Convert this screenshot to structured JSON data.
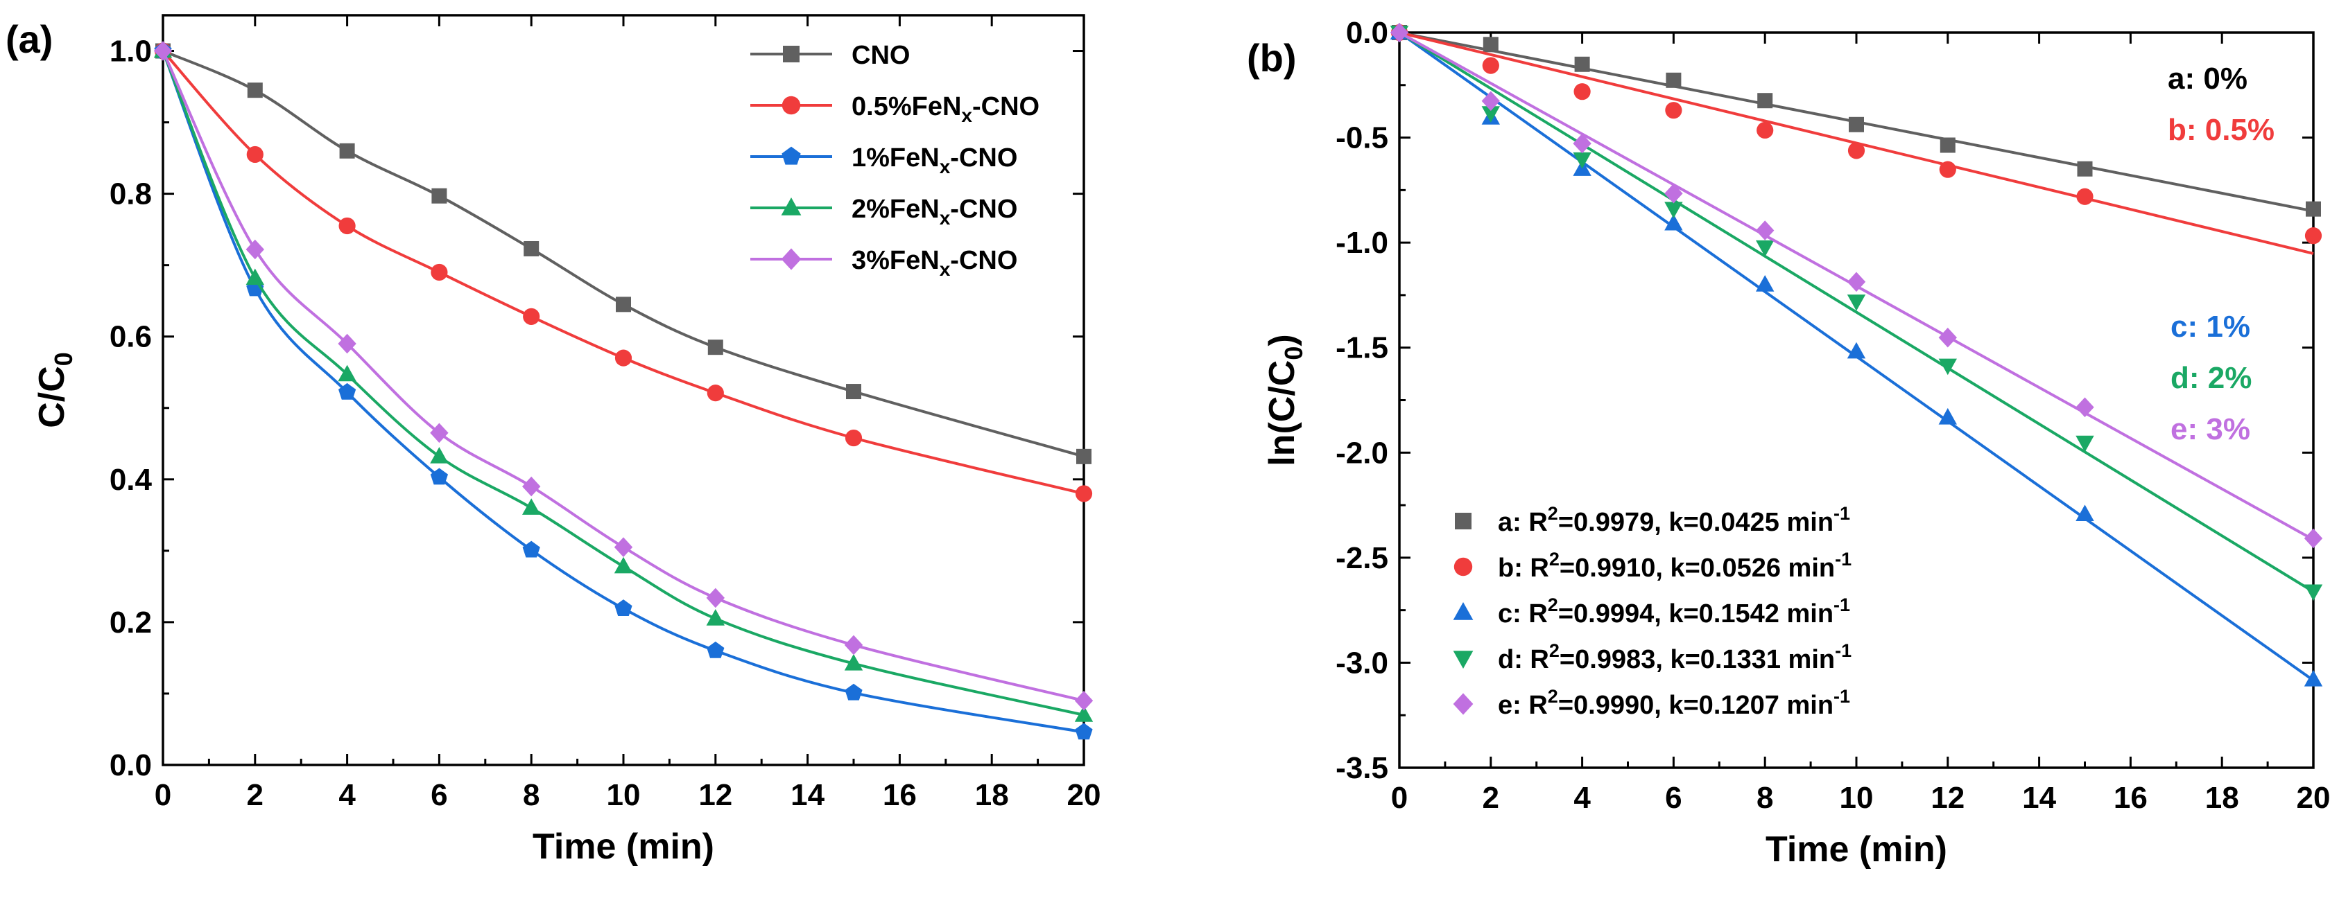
{
  "chart_data": [
    {
      "panel": "(a)",
      "type": "line",
      "xlabel": "Time (min)",
      "ylabel": "C/C0",
      "ylabel_main": "C/C",
      "ylabel_sub": "0",
      "xlim": [
        0,
        20
      ],
      "ylim": [
        0,
        1.05
      ],
      "xticks": [
        0,
        2,
        4,
        6,
        8,
        10,
        12,
        14,
        16,
        18,
        20
      ],
      "yticks": [
        0.0,
        0.2,
        0.4,
        0.6,
        0.8,
        1.0
      ],
      "xtick_labels": [
        "0",
        "2",
        "4",
        "6",
        "8",
        "10",
        "12",
        "14",
        "16",
        "18",
        "20"
      ],
      "ytick_labels": [
        "0.0",
        "0.2",
        "0.4",
        "0.6",
        "0.8",
        "1.0"
      ],
      "legend_position": "top-right",
      "x": [
        0,
        2,
        4,
        6,
        8,
        10,
        12,
        15,
        20
      ],
      "series": [
        {
          "name": "CNO",
          "legend_main": "CNO",
          "legend_sub": "",
          "legend_tail": "",
          "color": "#606060",
          "marker": "square",
          "values": [
            1.0,
            0.945,
            0.86,
            0.797,
            0.723,
            0.645,
            0.585,
            0.523,
            0.432
          ]
        },
        {
          "name": "0.5%FeNx-CNO",
          "legend_main": "0.5%FeN",
          "legend_sub": "x",
          "legend_tail": "-CNO",
          "color": "#f03c3c",
          "marker": "circle",
          "values": [
            1.0,
            0.855,
            0.755,
            0.69,
            0.628,
            0.57,
            0.521,
            0.458,
            0.38
          ]
        },
        {
          "name": "1%FeNx-CNO",
          "legend_main": "1%FeN",
          "legend_sub": "x",
          "legend_tail": "-CNO",
          "color": "#1a6fd8",
          "marker": "pentagon",
          "values": [
            1.0,
            0.667,
            0.522,
            0.403,
            0.301,
            0.219,
            0.16,
            0.101,
            0.046
          ]
        },
        {
          "name": "2%FeNx-CNO",
          "legend_main": "2%FeN",
          "legend_sub": "x",
          "legend_tail": "-CNO",
          "color": "#1aa864",
          "marker": "triangle-up",
          "values": [
            1.0,
            0.682,
            0.547,
            0.432,
            0.36,
            0.278,
            0.205,
            0.142,
            0.07
          ]
        },
        {
          "name": "3%FeNx-CNO",
          "legend_main": "3%FeN",
          "legend_sub": "x",
          "legend_tail": "-CNO",
          "color": "#c070e0",
          "marker": "diamond",
          "values": [
            1.0,
            0.722,
            0.59,
            0.465,
            0.39,
            0.305,
            0.234,
            0.168,
            0.09
          ]
        }
      ]
    },
    {
      "panel": "(b)",
      "type": "scatter",
      "xlabel": "Time (min)",
      "ylabel": "ln(C/C0)",
      "ylabel_main": "ln(C/C",
      "ylabel_sub": "0",
      "ylabel_tail": ")",
      "xlim": [
        0,
        20
      ],
      "ylim": [
        -3.5,
        0
      ],
      "xticks": [
        0,
        2,
        4,
        6,
        8,
        10,
        12,
        14,
        16,
        18,
        20
      ],
      "yticks": [
        0.0,
        -0.5,
        -1.0,
        -1.5,
        -2.0,
        -2.5,
        -3.0,
        -3.5
      ],
      "xtick_labels": [
        "0",
        "2",
        "4",
        "6",
        "8",
        "10",
        "12",
        "14",
        "16",
        "18",
        "20"
      ],
      "ytick_labels": [
        "0.0",
        "-0.5",
        "-1.0",
        "-1.5",
        "-2.0",
        "-2.5",
        "-3.0",
        "-3.5"
      ],
      "legend_position": "bottom-left",
      "x": [
        0,
        2,
        4,
        6,
        8,
        10,
        12,
        15,
        20
      ],
      "series": [
        {
          "name": "a",
          "color": "#606060",
          "marker": "square",
          "k": 0.0425,
          "legend_main": "a: R",
          "legend_sup": "2",
          "legend_mid": "=0.9979, k=0.0425 min",
          "legend_sup2": "-1",
          "values": [
            0,
            -0.057,
            -0.151,
            -0.227,
            -0.324,
            -0.438,
            -0.536,
            -0.649,
            -0.84
          ]
        },
        {
          "name": "b",
          "color": "#f03c3c",
          "marker": "circle",
          "k": 0.0526,
          "legend_main": "b: R",
          "legend_sup": "2",
          "legend_mid": "=0.9910, k=0.0526 min",
          "legend_sup2": "-1",
          "values": [
            0,
            -0.157,
            -0.281,
            -0.37,
            -0.465,
            -0.562,
            -0.652,
            -0.781,
            -0.967
          ]
        },
        {
          "name": "c",
          "color": "#1a6fd8",
          "marker": "triangle-up",
          "k": 0.1542,
          "legend_main": "c: R",
          "legend_sup": "2",
          "legend_mid": "=0.9994, k=0.1542 min",
          "legend_sup2": "-1",
          "values": [
            0,
            -0.405,
            -0.65,
            -0.909,
            -1.2,
            -1.519,
            -1.833,
            -2.293,
            -3.08
          ]
        },
        {
          "name": "d",
          "color": "#1aa864",
          "marker": "triangle-down",
          "k": 0.1331,
          "legend_main": "d: R",
          "legend_sup": "2",
          "legend_mid": "=0.9983, k=0.1331 min",
          "legend_sup2": "-1",
          "values": [
            0,
            -0.383,
            -0.603,
            -0.839,
            -1.022,
            -1.28,
            -1.585,
            -1.952,
            -2.66
          ]
        },
        {
          "name": "e",
          "color": "#c070e0",
          "marker": "diamond",
          "k": 0.1207,
          "legend_main": "e: R",
          "legend_sup": "2",
          "legend_mid": "=0.9990, k=0.1207 min",
          "legend_sup2": "-1",
          "values": [
            0,
            -0.326,
            -0.528,
            -0.766,
            -0.942,
            -1.187,
            -1.452,
            -1.784,
            -2.408
          ]
        }
      ],
      "annotations": [
        {
          "text": "a: 0%",
          "color": "#000000"
        },
        {
          "text": "b: 0.5%",
          "color": "#f03c3c"
        },
        {
          "text": "c: 1%",
          "color": "#1a6fd8"
        },
        {
          "text": "d: 2%",
          "color": "#1aa864"
        },
        {
          "text": "e: 3%",
          "color": "#c070e0"
        }
      ]
    }
  ]
}
